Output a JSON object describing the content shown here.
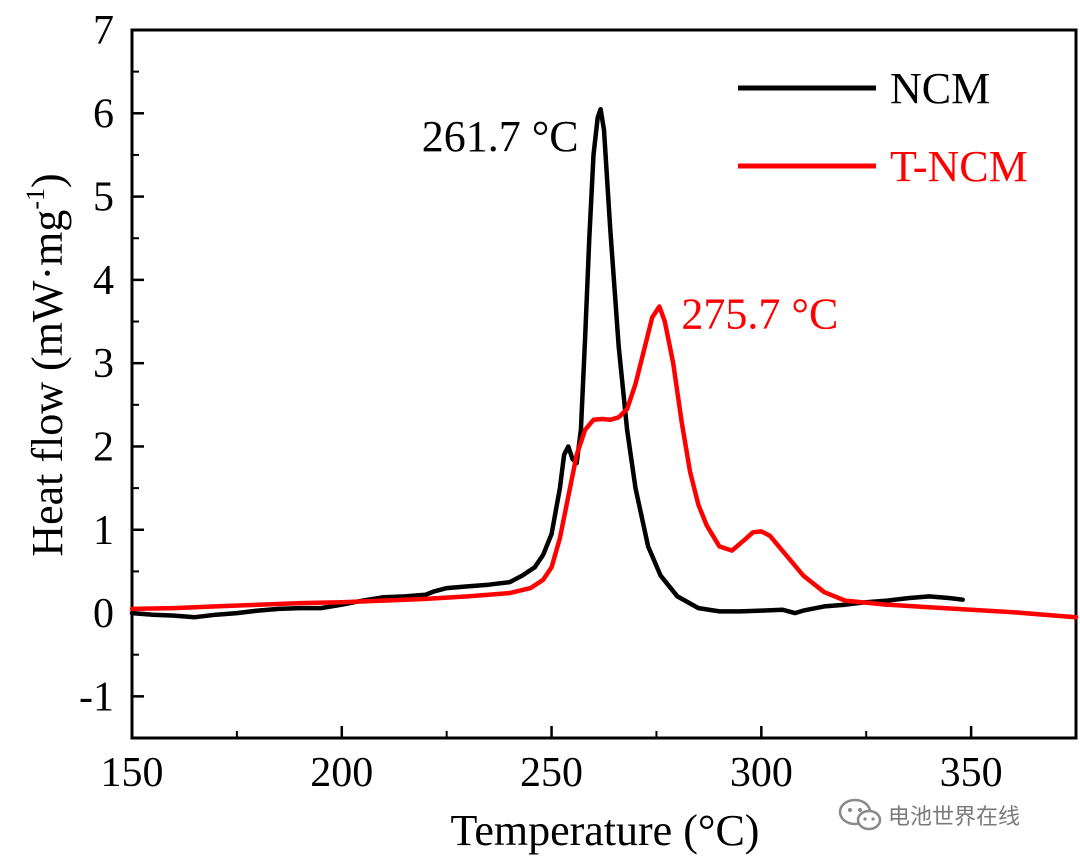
{
  "chart_data": {
    "type": "line",
    "title": "",
    "xlabel": "Temperature (°C)",
    "ylabel_main": "Heat flow (mW·mg",
    "ylabel_sup": "-1",
    "ylabel_tail": ")",
    "xlim": [
      150,
      375
    ],
    "ylim": [
      -1.5,
      7
    ],
    "xticks": [
      150,
      200,
      250,
      300,
      350
    ],
    "yticks": [
      -1,
      0,
      1,
      2,
      3,
      4,
      5,
      6,
      7
    ],
    "xtick_labels": [
      "150",
      "200",
      "250",
      "300",
      "350"
    ],
    "ytick_labels": [
      "-1",
      "0",
      "1",
      "2",
      "3",
      "4",
      "5",
      "6",
      "7"
    ],
    "legend_position": "top-right",
    "series": [
      {
        "name": "NCM",
        "color": "#000000",
        "x": [
          150,
          155,
          160,
          165,
          170,
          175,
          180,
          185,
          190,
          195,
          200,
          205,
          210,
          215,
          220,
          222,
          225,
          230,
          235,
          240,
          243,
          246,
          248,
          250,
          252,
          253,
          254,
          255,
          256,
          257,
          258,
          259,
          260,
          261,
          261.7,
          262.5,
          264,
          266,
          268,
          270,
          273,
          276,
          280,
          285,
          290,
          295,
          300,
          305,
          308,
          310,
          315,
          320,
          325,
          330,
          335,
          340,
          345,
          348
        ],
        "y": [
          0.0,
          -0.02,
          -0.03,
          -0.05,
          -0.02,
          0.0,
          0.03,
          0.05,
          0.06,
          0.06,
          0.1,
          0.15,
          0.19,
          0.2,
          0.22,
          0.26,
          0.3,
          0.32,
          0.34,
          0.37,
          0.45,
          0.55,
          0.7,
          0.95,
          1.5,
          1.9,
          2.0,
          1.85,
          1.8,
          2.2,
          3.3,
          4.5,
          5.5,
          5.95,
          6.05,
          5.8,
          4.6,
          3.2,
          2.2,
          1.5,
          0.8,
          0.45,
          0.2,
          0.06,
          0.02,
          0.02,
          0.03,
          0.04,
          0.0,
          0.03,
          0.08,
          0.1,
          0.13,
          0.15,
          0.18,
          0.2,
          0.18,
          0.16
        ]
      },
      {
        "name": "T-NCM",
        "color": "#ff0000",
        "x": [
          150,
          160,
          170,
          180,
          190,
          200,
          210,
          220,
          230,
          240,
          245,
          248,
          250,
          252,
          254,
          256,
          258,
          260,
          262,
          264,
          266,
          268,
          270,
          272,
          274,
          275.7,
          277,
          279,
          281,
          283,
          285,
          287,
          290,
          293,
          296,
          298,
          300,
          302,
          305,
          310,
          315,
          320,
          330,
          340,
          350,
          360,
          370,
          375
        ],
        "y": [
          0.05,
          0.06,
          0.08,
          0.1,
          0.12,
          0.13,
          0.15,
          0.17,
          0.2,
          0.24,
          0.3,
          0.4,
          0.55,
          0.9,
          1.4,
          1.9,
          2.2,
          2.32,
          2.33,
          2.32,
          2.35,
          2.45,
          2.75,
          3.15,
          3.55,
          3.68,
          3.5,
          3.0,
          2.3,
          1.7,
          1.3,
          1.05,
          0.8,
          0.75,
          0.88,
          0.97,
          0.98,
          0.93,
          0.75,
          0.45,
          0.25,
          0.15,
          0.1,
          0.07,
          0.04,
          0.01,
          -0.03,
          -0.05
        ]
      }
    ],
    "annotations": [
      {
        "text": "261.7 °C",
        "x": 261.7,
        "y": 6.05,
        "color": "#000000"
      },
      {
        "text": "275.7 °C",
        "x": 275.7,
        "y": 3.68,
        "color": "#ff0000"
      }
    ]
  },
  "watermark": {
    "text": "电池世界在线"
  }
}
